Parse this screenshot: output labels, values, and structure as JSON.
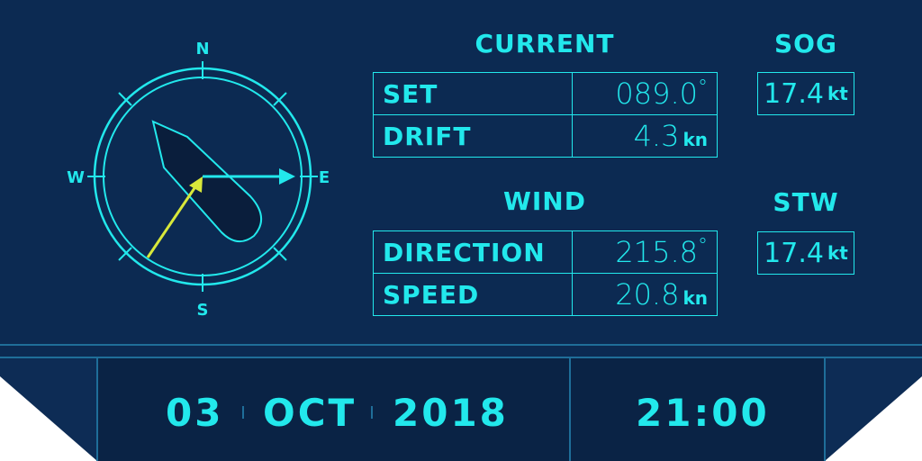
{
  "compass": {
    "north": "N",
    "east": "E",
    "south": "S",
    "west": "W"
  },
  "current": {
    "title": "CURRENT",
    "set_label": "SET",
    "set_value": "089.0",
    "set_unit": "°",
    "drift_label": "DRIFT",
    "drift_value": "4.3",
    "drift_unit": "kn"
  },
  "wind": {
    "title": "WIND",
    "direction_label": "DIRECTION",
    "direction_value": "215.8",
    "direction_unit": "°",
    "speed_label": "SPEED",
    "speed_value": "20.8",
    "speed_unit": "kn"
  },
  "sog": {
    "title": "SOG",
    "value": "17.4",
    "unit": "kt"
  },
  "stw": {
    "title": "STW",
    "value": "17.4",
    "unit": "kt"
  },
  "footer": {
    "day": "03",
    "month": "OCT",
    "year": "2018",
    "time": "21:00"
  },
  "colors": {
    "background": "#0c2a52",
    "accent": "#22e8ec",
    "wind_arrow": "#d8e83a",
    "boat_fill": "#0a1e3c"
  }
}
